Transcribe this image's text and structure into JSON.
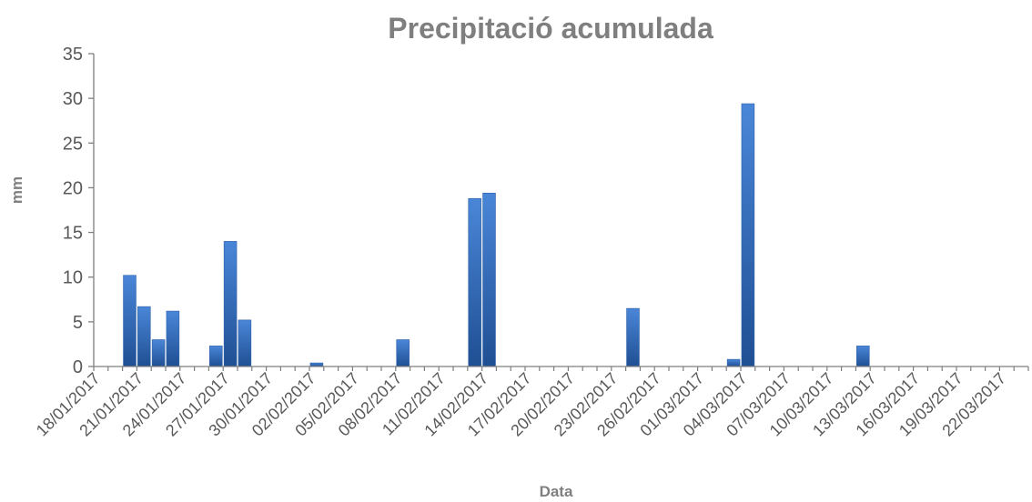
{
  "chart_data": {
    "type": "bar",
    "title": "Precipitació acumulada",
    "xlabel": "Data",
    "ylabel": "mm",
    "ylim": [
      0,
      35
    ],
    "yticks": [
      0,
      5,
      10,
      15,
      20,
      25,
      30,
      35
    ],
    "grid": false,
    "legend": "none",
    "x_start": "18/01/2017",
    "x_end": "23/03/2017",
    "xtick_labels": [
      "18/01/2017",
      "21/01/2017",
      "24/01/2017",
      "27/01/2017",
      "30/01/2017",
      "02/02/2017",
      "05/02/2017",
      "08/02/2017",
      "11/02/2017",
      "14/02/2017",
      "17/02/2017",
      "20/02/2017",
      "23/02/2017",
      "26/02/2017",
      "01/03/2017",
      "04/03/2017",
      "07/03/2017",
      "10/03/2017",
      "13/03/2017",
      "16/03/2017",
      "19/03/2017",
      "22/03/2017"
    ],
    "series": [
      {
        "color": "#3a70c0",
        "points": [
          {
            "x": "20/01/2017",
            "y": 10.2
          },
          {
            "x": "21/01/2017",
            "y": 6.7
          },
          {
            "x": "22/01/2017",
            "y": 3.0
          },
          {
            "x": "23/01/2017",
            "y": 6.2
          },
          {
            "x": "26/01/2017",
            "y": 2.3
          },
          {
            "x": "27/01/2017",
            "y": 14.0
          },
          {
            "x": "28/01/2017",
            "y": 5.2
          },
          {
            "x": "02/02/2017",
            "y": 0.4
          },
          {
            "x": "08/02/2017",
            "y": 3.0
          },
          {
            "x": "13/02/2017",
            "y": 18.8
          },
          {
            "x": "14/02/2017",
            "y": 19.4
          },
          {
            "x": "24/02/2017",
            "y": 6.5
          },
          {
            "x": "03/03/2017",
            "y": 0.8
          },
          {
            "x": "04/03/2017",
            "y": 29.4
          },
          {
            "x": "12/03/2017",
            "y": 2.3
          }
        ]
      }
    ]
  }
}
